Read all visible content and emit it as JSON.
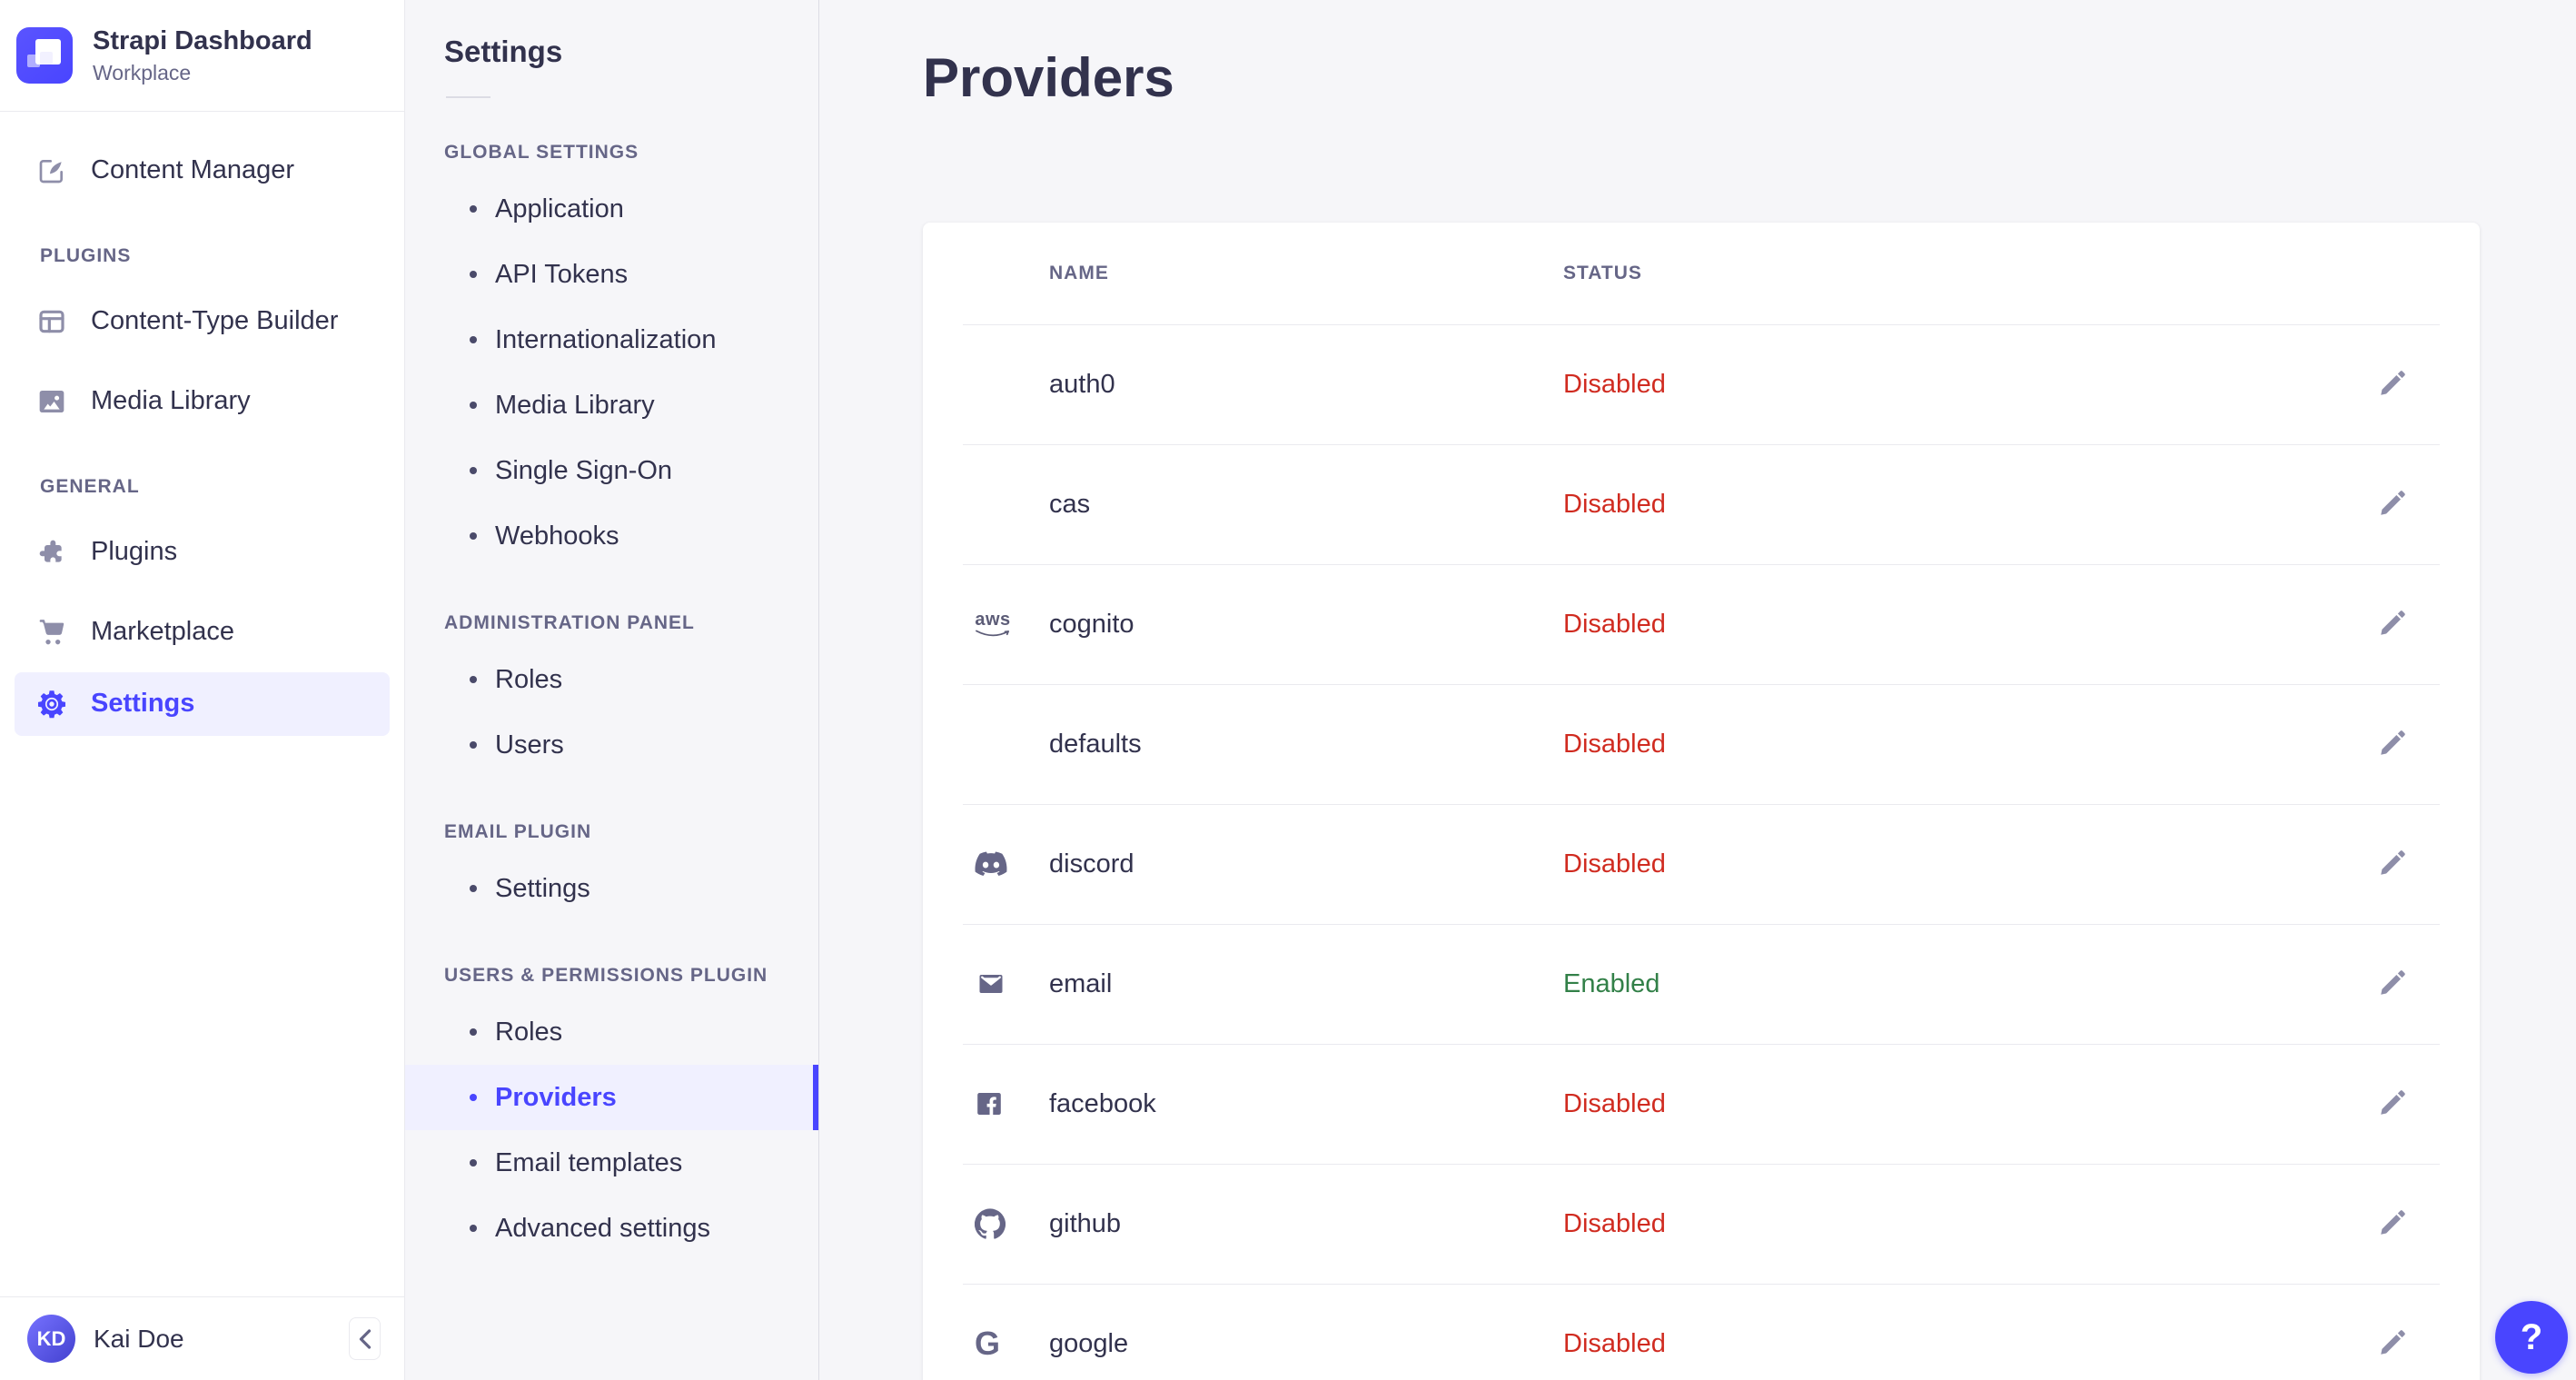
{
  "brand": {
    "title": "Strapi Dashboard",
    "subtitle": "Workplace"
  },
  "sidebar": {
    "nav": [
      {
        "type": "item",
        "id": "content-manager",
        "label": "Content Manager",
        "icon": "pen-square-icon",
        "active": false
      },
      {
        "type": "section",
        "id": "plugins-section",
        "label": "PLUGINS"
      },
      {
        "type": "item",
        "id": "content-type-builder",
        "label": "Content-Type Builder",
        "icon": "layout-grid-icon",
        "active": false
      },
      {
        "type": "item",
        "id": "media-library",
        "label": "Media Library",
        "icon": "picture-icon",
        "active": false
      },
      {
        "type": "section",
        "id": "general-section",
        "label": "GENERAL"
      },
      {
        "type": "item",
        "id": "plugins",
        "label": "Plugins",
        "icon": "puzzle-icon",
        "active": false
      },
      {
        "type": "item",
        "id": "marketplace",
        "label": "Marketplace",
        "icon": "cart-icon",
        "active": false
      },
      {
        "type": "item",
        "id": "settings",
        "label": "Settings",
        "icon": "gear-icon",
        "active": true
      }
    ],
    "footer": {
      "user_initials": "KD",
      "user_name": "Kai Doe"
    }
  },
  "subnav": {
    "title": "Settings",
    "sections": [
      {
        "label": "GLOBAL SETTINGS",
        "items": [
          {
            "label": "Application",
            "active": false
          },
          {
            "label": "API Tokens",
            "active": false
          },
          {
            "label": "Internationalization",
            "active": false
          },
          {
            "label": "Media Library",
            "active": false
          },
          {
            "label": "Single Sign-On",
            "active": false
          },
          {
            "label": "Webhooks",
            "active": false
          }
        ]
      },
      {
        "label": "ADMINISTRATION PANEL",
        "items": [
          {
            "label": "Roles",
            "active": false
          },
          {
            "label": "Users",
            "active": false
          }
        ]
      },
      {
        "label": "EMAIL PLUGIN",
        "items": [
          {
            "label": "Settings",
            "active": false
          }
        ]
      },
      {
        "label": "USERS & PERMISSIONS PLUGIN",
        "items": [
          {
            "label": "Roles",
            "active": false
          },
          {
            "label": "Providers",
            "active": true
          },
          {
            "label": "Email templates",
            "active": false
          },
          {
            "label": "Advanced settings",
            "active": false
          }
        ]
      }
    ]
  },
  "main": {
    "title": "Providers",
    "table": {
      "headers": {
        "name": "NAME",
        "status": "STATUS"
      },
      "rows": [
        {
          "name": "auth0",
          "status": "Disabled",
          "enabled": false,
          "icon": null
        },
        {
          "name": "cas",
          "status": "Disabled",
          "enabled": false,
          "icon": null
        },
        {
          "name": "cognito",
          "status": "Disabled",
          "enabled": false,
          "icon": "aws-icon"
        },
        {
          "name": "defaults",
          "status": "Disabled",
          "enabled": false,
          "icon": null
        },
        {
          "name": "discord",
          "status": "Disabled",
          "enabled": false,
          "icon": "discord-icon"
        },
        {
          "name": "email",
          "status": "Enabled",
          "enabled": true,
          "icon": "envelope-icon"
        },
        {
          "name": "facebook",
          "status": "Disabled",
          "enabled": false,
          "icon": "facebook-icon"
        },
        {
          "name": "github",
          "status": "Disabled",
          "enabled": false,
          "icon": "github-icon"
        },
        {
          "name": "google",
          "status": "Disabled",
          "enabled": false,
          "icon": "google-icon"
        }
      ]
    }
  },
  "help": {
    "label": "?"
  },
  "colors": {
    "primary": "#4945ff",
    "primary_light": "#f0f0ff",
    "danger": "#d02b20",
    "success": "#328048",
    "text": "#32324d",
    "muted": "#666687",
    "icon_gray": "#8e8ea9",
    "border": "#eaeaef",
    "page_bg": "#f6f6f9"
  }
}
